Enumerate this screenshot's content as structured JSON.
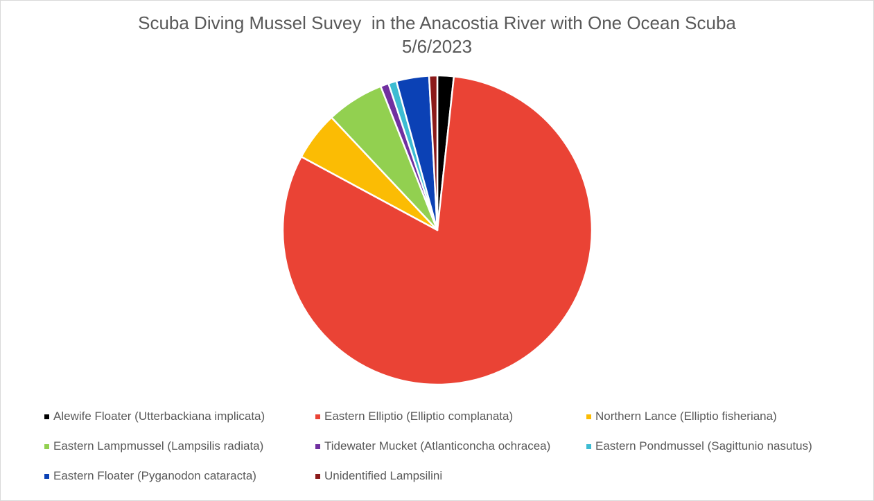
{
  "chart_data": {
    "type": "pie",
    "title": "Scuba Diving Mussel Suvey  in the Anacostia River with One Ocean Scuba",
    "subtitle": "5/6/2023",
    "legend_position": "bottom",
    "slices": [
      {
        "name": "Alewife Floater (Utterbackiana implicata)",
        "percent": 1.7,
        "color": "#000000"
      },
      {
        "name": "Eastern Elliptio (Elliptio complanata)",
        "percent": 80.8,
        "color": "#ea4335"
      },
      {
        "name": "Northern Lance (Elliptio fisheriana)",
        "percent": 5.1,
        "color": "#fbbc04"
      },
      {
        "name": "Eastern Lampmussel (Lampsilis radiata)",
        "percent": 6.0,
        "color": "#92d050"
      },
      {
        "name": "Tidewater Mucket (Atlanticoncha ochracea)",
        "percent": 0.85,
        "color": "#7030a0"
      },
      {
        "name": "Eastern Pondmussel (Sagittunio nasutus)",
        "percent": 0.85,
        "color": "#3dbcd2"
      },
      {
        "name": "Eastern Floater (Pyganodon cataracta)",
        "percent": 3.4,
        "color": "#0b41b5"
      },
      {
        "name": "Unidentified Lampsilini",
        "percent": 0.85,
        "color": "#8b1a1a"
      }
    ]
  }
}
